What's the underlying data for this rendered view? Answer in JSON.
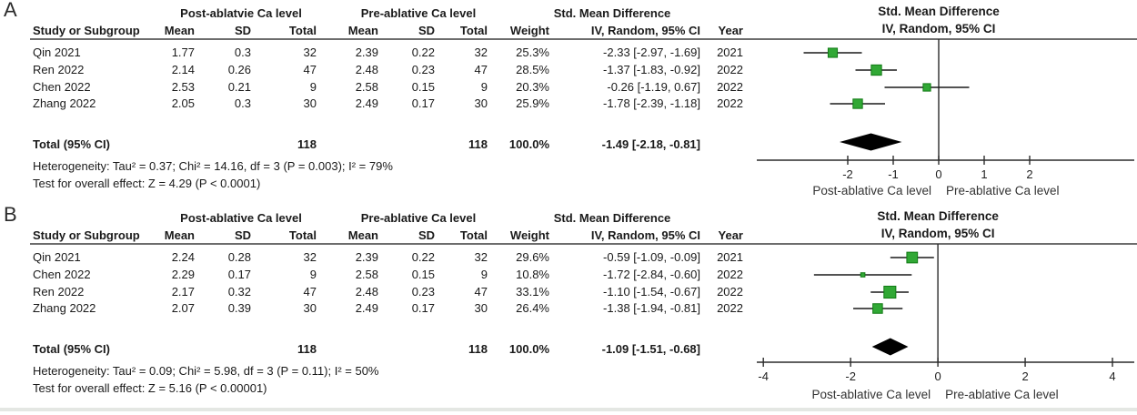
{
  "figure_title": "Forest plots of standardized mean difference in Ca level (post-ablative vs pre-ablative)",
  "panels": [
    {
      "label": "A",
      "group_headers": {
        "post": "Post-ablatvie Ca level",
        "pre": "Pre-ablative Ca level",
        "smd": "Std. Mean Difference"
      },
      "columns": [
        "Study or Subgroup",
        "Mean",
        "SD",
        "Total",
        "Mean",
        "SD",
        "Total",
        "Weight",
        "IV, Random, 95% CI",
        "Year"
      ],
      "plot_header_line1": "Std. Mean Difference",
      "plot_header_line2": "IV, Random, 95% CI",
      "rows": [
        {
          "study": "Qin 2021",
          "mean1": "1.77",
          "sd1": "0.3",
          "total1": "32",
          "mean2": "2.39",
          "sd2": "0.22",
          "total2": "32",
          "weight": "25.3%",
          "ci_text": "-2.33 [-2.97, -1.69]",
          "year": "2021"
        },
        {
          "study": "Ren 2022",
          "mean1": "2.14",
          "sd1": "0.26",
          "total1": "47",
          "mean2": "2.48",
          "sd2": "0.23",
          "total2": "47",
          "weight": "28.5%",
          "ci_text": "-1.37 [-1.83, -0.92]",
          "year": "2022"
        },
        {
          "study": "Chen 2022",
          "mean1": "2.53",
          "sd1": "0.21",
          "total1": "9",
          "mean2": "2.58",
          "sd2": "0.15",
          "total2": "9",
          "weight": "20.3%",
          "ci_text": "-0.26 [-1.19, 0.67]",
          "year": "2022"
        },
        {
          "study": "Zhang 2022",
          "mean1": "2.05",
          "sd1": "0.3",
          "total1": "30",
          "mean2": "2.49",
          "sd2": "0.17",
          "total2": "30",
          "weight": "25.9%",
          "ci_text": "-1.78 [-2.39, -1.18]",
          "year": "2022"
        }
      ],
      "total": {
        "label": "Total (95% CI)",
        "total1": "118",
        "total2": "118",
        "weight": "100.0%",
        "ci_text": "-1.49 [-2.18, -0.81]"
      },
      "heterogeneity": "Heterogeneity: Tau² = 0.37; Chi² = 14.16, df = 3 (P = 0.003); I² = 79%",
      "overall_effect": "Test for overall effect: Z = 4.29 (P < 0.0001)"
    },
    {
      "label": "B",
      "group_headers": {
        "post": "Post-ablative Ca level",
        "pre": "Pre-ablative Ca level",
        "smd": "Std. Mean Difference"
      },
      "columns": [
        "Study or Subgroup",
        "Mean",
        "SD",
        "Total",
        "Mean",
        "SD",
        "Total",
        "Weight",
        "IV, Random, 95% CI",
        "Year"
      ],
      "plot_header_line1": "Std. Mean Difference",
      "plot_header_line2": "IV, Random, 95% CI",
      "rows": [
        {
          "study": "Qin 2021",
          "mean1": "2.24",
          "sd1": "0.28",
          "total1": "32",
          "mean2": "2.39",
          "sd2": "0.22",
          "total2": "32",
          "weight": "29.6%",
          "ci_text": "-0.59 [-1.09, -0.09]",
          "year": "2021"
        },
        {
          "study": "Chen 2022",
          "mean1": "2.29",
          "sd1": "0.17",
          "total1": "9",
          "mean2": "2.58",
          "sd2": "0.15",
          "total2": "9",
          "weight": "10.8%",
          "ci_text": "-1.72 [-2.84, -0.60]",
          "year": "2022"
        },
        {
          "study": "Ren 2022",
          "mean1": "2.17",
          "sd1": "0.32",
          "total1": "47",
          "mean2": "2.48",
          "sd2": "0.23",
          "total2": "47",
          "weight": "33.1%",
          "ci_text": "-1.10 [-1.54, -0.67]",
          "year": "2022"
        },
        {
          "study": "Zhang 2022",
          "mean1": "2.07",
          "sd1": "0.39",
          "total1": "30",
          "mean2": "2.49",
          "sd2": "0.17",
          "total2": "30",
          "weight": "26.4%",
          "ci_text": "-1.38 [-1.94, -0.81]",
          "year": "2022"
        }
      ],
      "total": {
        "label": "Total (95% CI)",
        "total1": "118",
        "total2": "118",
        "weight": "100.0%",
        "ci_text": "-1.09 [-1.51, -0.68]"
      },
      "heterogeneity": "Heterogeneity: Tau² = 0.09; Chi² = 5.98, df = 3 (P = 0.11); I² = 50%",
      "overall_effect": "Test for overall effect: Z = 5.16 (P < 0.00001)"
    }
  ],
  "chart_data": [
    {
      "type": "forest",
      "panel": "A",
      "title": "Std. Mean Difference",
      "subtitle": "IV, Random, 95% CI",
      "studies": [
        "Qin 2021",
        "Ren 2022",
        "Chen 2022",
        "Zhang 2022"
      ],
      "smd": [
        -2.33,
        -1.37,
        -0.26,
        -1.78
      ],
      "ci_low": [
        -2.97,
        -1.83,
        -1.19,
        -2.39
      ],
      "ci_high": [
        -1.69,
        -0.92,
        0.67,
        -1.18
      ],
      "weights": [
        25.3,
        28.5,
        20.3,
        25.9
      ],
      "total": {
        "smd": -1.49,
        "ci_low": -2.18,
        "ci_high": -0.81
      },
      "xticks": [
        -2,
        -1,
        0,
        1,
        2
      ],
      "xlim": [
        -4,
        4.3
      ],
      "xlabel_left": "Post-ablative Ca level",
      "xlabel_right": "Pre-ablative Ca level",
      "marker_color": "#31a835",
      "marker_border": "#117a14",
      "diamond_color": "#000000"
    },
    {
      "type": "forest",
      "panel": "B",
      "title": "Std. Mean Difference",
      "subtitle": "IV, Random, 95% CI",
      "studies": [
        "Qin 2021",
        "Chen 2022",
        "Ren 2022",
        "Zhang 2022"
      ],
      "smd": [
        -0.59,
        -1.72,
        -1.1,
        -1.38
      ],
      "ci_low": [
        -1.09,
        -2.84,
        -1.54,
        -1.94
      ],
      "ci_high": [
        -0.09,
        -0.6,
        -0.67,
        -0.81
      ],
      "weights": [
        29.6,
        10.8,
        33.1,
        26.4
      ],
      "total": {
        "smd": -1.09,
        "ci_low": -1.51,
        "ci_high": -0.68
      },
      "xticks": [
        -4,
        -2,
        0,
        2,
        4
      ],
      "xlim": [
        -4.15,
        4.5
      ],
      "xlabel_left": "Post-ablative Ca level",
      "xlabel_right": "Pre-ablative Ca level",
      "marker_color": "#31a835",
      "marker_border": "#117a14",
      "diamond_color": "#000000"
    }
  ]
}
